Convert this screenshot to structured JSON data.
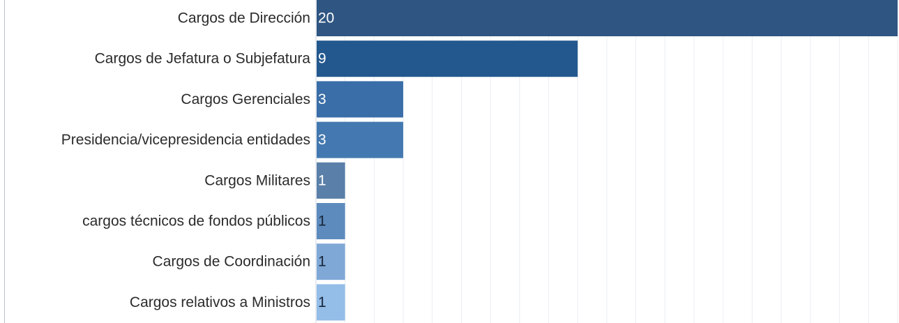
{
  "chart_data": {
    "type": "bar",
    "orientation": "horizontal",
    "categories": [
      "Cargos de Dirección",
      "Cargos de Jefatura o Subjefatura",
      "Cargos Gerenciales",
      "Presidencia/vicepresidencia entidades",
      "Cargos Militares",
      "cargos técnicos de fondos públicos",
      "Cargos de Coordinación",
      "Cargos relativos a Ministros"
    ],
    "values": [
      20,
      9,
      3,
      3,
      1,
      1,
      1,
      1
    ],
    "data_labels": [
      "20",
      "9",
      "3",
      "3",
      "1",
      "1",
      "1",
      "1"
    ],
    "bar_colors": [
      "#2f5582",
      "#23588f",
      "#3a6ea8",
      "#4379b0",
      "#5a7fa8",
      "#5e8bbd",
      "#7fa8d6",
      "#94bde8"
    ],
    "label_colors": [
      "#ffffff",
      "#ffffff",
      "#ffffff",
      "#ffffff",
      "#ffffff",
      "#16253a",
      "#16253a",
      "#16253a"
    ],
    "xlim": [
      0,
      20
    ],
    "grid": true,
    "legend": "none",
    "title": "",
    "xlabel": "",
    "ylabel": ""
  }
}
